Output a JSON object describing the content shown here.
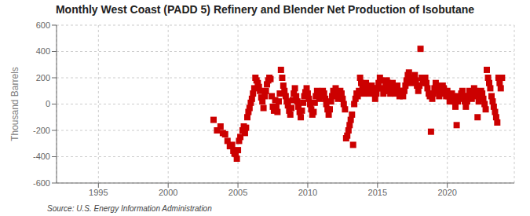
{
  "chart_data": {
    "type": "scatter",
    "title": "Monthly West Coast (PADD 5) Refinery and Blender Net Production of Isobutane",
    "y_label": "Thousand Barrels",
    "annotations": [
      "Source: U.S. Energy Information Administration"
    ],
    "color": "#cc0000",
    "marker": "square",
    "grid": true,
    "xlim": [
      1992.0,
      2024.8
    ],
    "ylim": [
      -600,
      600
    ],
    "xticks": [
      1995,
      2000,
      2005,
      2010,
      2015,
      2020
    ],
    "yticks": [
      -600,
      -400,
      -200,
      0,
      200,
      400,
      600
    ],
    "x": [
      2003.25,
      2003.5,
      2003.75,
      2003.92,
      2004.08,
      2004.25,
      2004.42,
      2004.58,
      2004.67,
      2004.75,
      2004.83,
      2004.92,
      2005.0,
      2005.08,
      2005.17,
      2005.33,
      2005.42,
      2005.5,
      2005.58,
      2005.67,
      2005.75,
      2005.83,
      2005.92,
      2006.0,
      2006.08,
      2006.17,
      2006.25,
      2006.33,
      2006.42,
      2006.5,
      2006.58,
      2006.67,
      2006.75,
      2006.83,
      2006.92,
      2007.0,
      2007.08,
      2007.17,
      2007.25,
      2007.33,
      2007.42,
      2007.5,
      2007.58,
      2007.67,
      2007.75,
      2007.83,
      2007.92,
      2008.0,
      2008.08,
      2008.17,
      2008.25,
      2008.33,
      2008.42,
      2008.5,
      2008.58,
      2008.67,
      2008.75,
      2008.83,
      2008.92,
      2009.0,
      2009.08,
      2009.17,
      2009.25,
      2009.33,
      2009.42,
      2009.5,
      2009.58,
      2009.67,
      2009.75,
      2009.83,
      2009.92,
      2010.0,
      2010.08,
      2010.17,
      2010.25,
      2010.33,
      2010.42,
      2010.5,
      2010.58,
      2010.67,
      2010.75,
      2010.83,
      2010.92,
      2011.0,
      2011.08,
      2011.17,
      2011.25,
      2011.33,
      2011.42,
      2011.5,
      2011.58,
      2011.67,
      2011.75,
      2011.83,
      2011.92,
      2012.0,
      2012.08,
      2012.17,
      2012.25,
      2012.33,
      2012.42,
      2012.5,
      2012.58,
      2012.67,
      2012.75,
      2012.83,
      2012.92,
      2013.0,
      2013.08,
      2013.17,
      2013.25,
      2013.33,
      2013.42,
      2013.5,
      2013.58,
      2013.67,
      2013.75,
      2013.83,
      2013.92,
      2014.0,
      2014.08,
      2014.17,
      2014.25,
      2014.33,
      2014.42,
      2014.5,
      2014.58,
      2014.67,
      2014.75,
      2014.83,
      2014.92,
      2015.0,
      2015.08,
      2015.17,
      2015.25,
      2015.33,
      2015.42,
      2015.5,
      2015.58,
      2015.67,
      2015.75,
      2015.83,
      2015.92,
      2016.0,
      2016.08,
      2016.17,
      2016.25,
      2016.33,
      2016.42,
      2016.5,
      2016.58,
      2016.67,
      2016.75,
      2016.83,
      2016.92,
      2017.0,
      2017.08,
      2017.17,
      2017.25,
      2017.33,
      2017.42,
      2017.5,
      2017.58,
      2017.67,
      2017.75,
      2017.83,
      2017.92,
      2018.0,
      2018.08,
      2018.17,
      2018.25,
      2018.33,
      2018.42,
      2018.5,
      2018.58,
      2018.67,
      2018.75,
      2018.83,
      2018.92,
      2019.0,
      2019.08,
      2019.17,
      2019.25,
      2019.33,
      2019.42,
      2019.5,
      2019.58,
      2019.67,
      2019.75,
      2019.83,
      2019.92,
      2020.0,
      2020.08,
      2020.17,
      2020.25,
      2020.33,
      2020.42,
      2020.5,
      2020.58,
      2020.67,
      2020.75,
      2020.83,
      2020.92,
      2021.0,
      2021.08,
      2021.17,
      2021.25,
      2021.33,
      2021.42,
      2021.5,
      2021.58,
      2021.67,
      2021.75,
      2021.83,
      2021.92,
      2022.0,
      2022.08,
      2022.17,
      2022.25,
      2022.33,
      2022.42,
      2022.5,
      2022.58,
      2022.67,
      2022.75,
      2022.83,
      2022.92,
      2023.0,
      2023.08,
      2023.17,
      2023.25,
      2023.33,
      2023.42,
      2023.5,
      2023.58,
      2023.67,
      2023.75,
      2023.83,
      2023.92
    ],
    "values": [
      -120,
      -200,
      -170,
      -220,
      -230,
      -280,
      -320,
      -310,
      -355,
      -375,
      -380,
      -415,
      -350,
      -280,
      -250,
      -200,
      -170,
      -220,
      -180,
      -100,
      -60,
      -30,
      10,
      40,
      80,
      120,
      200,
      180,
      160,
      130,
      100,
      50,
      20,
      -30,
      60,
      100,
      150,
      180,
      200,
      190,
      60,
      -20,
      -50,
      30,
      -20,
      -60,
      20,
      80,
      260,
      200,
      140,
      100,
      60,
      20,
      -10,
      -50,
      -80,
      -30,
      30,
      80,
      120,
      60,
      20,
      -20,
      -60,
      -100,
      -50,
      10,
      60,
      90,
      120,
      80,
      40,
      0,
      -40,
      -80,
      -60,
      10,
      60,
      100,
      80,
      40,
      80,
      60,
      100,
      80,
      40,
      0,
      -40,
      -80,
      -40,
      20,
      60,
      100,
      80,
      120,
      80,
      40,
      60,
      100,
      80,
      40,
      0,
      -40,
      -260,
      -240,
      -200,
      -160,
      -120,
      -80,
      -310,
      0,
      40,
      80,
      60,
      100,
      200,
      160,
      120,
      80,
      120,
      160,
      140,
      100,
      80,
      100,
      140,
      120,
      80,
      40,
      80,
      120,
      160,
      200,
      180,
      120,
      80,
      100,
      140,
      180,
      160,
      100,
      80,
      120,
      160,
      120,
      80,
      100,
      140,
      100,
      60,
      100,
      80,
      60,
      100,
      140,
      180,
      220,
      240,
      200,
      160,
      180,
      200,
      220,
      180,
      140,
      100,
      140,
      420,
      200,
      160,
      180,
      200,
      160,
      120,
      80,
      60,
      -210,
      40,
      80,
      120,
      160,
      140,
      100,
      60,
      80,
      100,
      140,
      120,
      80,
      60,
      100,
      60,
      20,
      40,
      80,
      60,
      20,
      -20,
      -160,
      20,
      60,
      40,
      80,
      100,
      60,
      20,
      -20,
      20,
      60,
      100,
      80,
      40,
      80,
      120,
      100,
      60,
      -100,
      20,
      60,
      100,
      80,
      40,
      0,
      -40,
      260,
      200,
      160,
      120,
      60,
      20,
      -20,
      -60,
      -100,
      -140,
      200,
      160,
      120,
      200
    ]
  }
}
